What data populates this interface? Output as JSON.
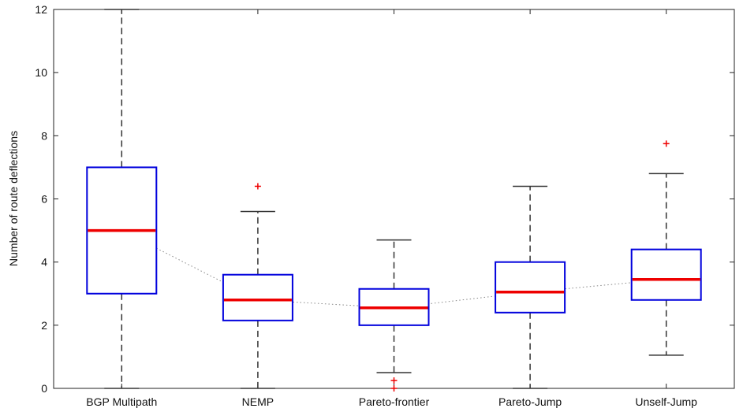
{
  "chart_data": {
    "type": "box",
    "title": "",
    "xlabel": "",
    "ylabel": "Number of route deflections",
    "ylim": [
      0,
      12
    ],
    "yticks": [
      0,
      2,
      4,
      6,
      8,
      10,
      12
    ],
    "grid": false,
    "categories": [
      "BGP Multipath",
      "NEMP",
      "Pareto-frontier",
      "Pareto-Jump",
      "Unself-Jump"
    ],
    "boxes": [
      {
        "category": "BGP Multipath",
        "whisker_low": 0,
        "q1": 3.0,
        "median": 5.0,
        "q3": 7.0,
        "whisker_high": 12.0,
        "outliers": []
      },
      {
        "category": "NEMP",
        "whisker_low": 0,
        "q1": 2.15,
        "median": 2.8,
        "q3": 3.6,
        "whisker_high": 5.6,
        "outliers": [
          6.4
        ]
      },
      {
        "category": "Pareto-frontier",
        "whisker_low": 0.5,
        "q1": 2.0,
        "median": 2.55,
        "q3": 3.15,
        "whisker_high": 4.7,
        "outliers": [
          0.25,
          0.0
        ]
      },
      {
        "category": "Pareto-Jump",
        "whisker_low": 0,
        "q1": 2.4,
        "median": 3.05,
        "q3": 4.0,
        "whisker_high": 6.4,
        "outliers": []
      },
      {
        "category": "Unself-Jump",
        "whisker_low": 1.05,
        "q1": 2.8,
        "median": 3.45,
        "q3": 4.4,
        "whisker_high": 6.8,
        "outliers": [
          7.75
        ]
      }
    ],
    "median_trend_line": true,
    "colors": {
      "box": "#0000dd",
      "median": "#ee0000",
      "whisker": "#333333",
      "outlier": "#ee0000",
      "trend": "#888888",
      "axis": "#222222"
    }
  }
}
